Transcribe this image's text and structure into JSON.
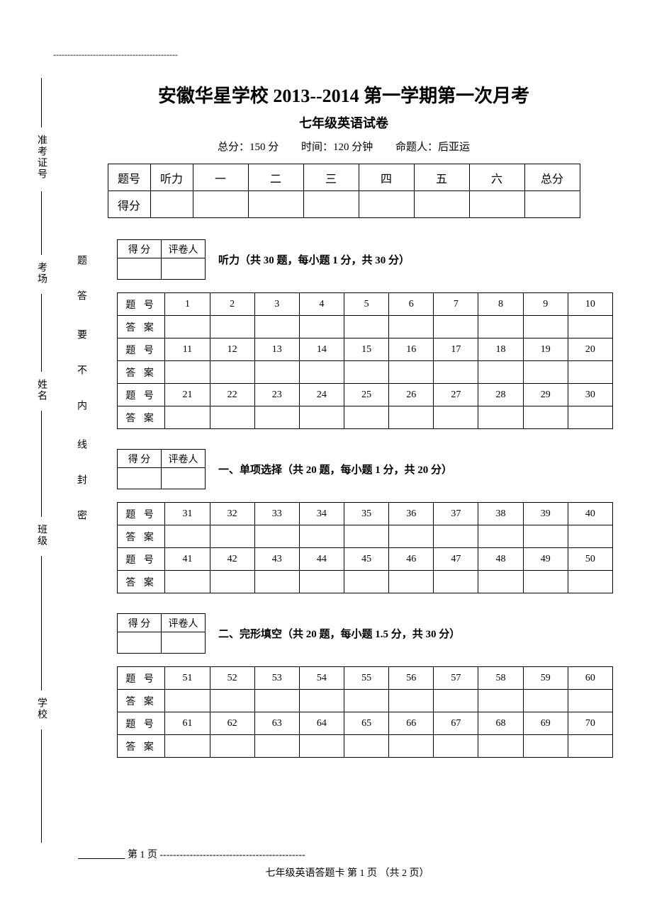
{
  "top_dash": "--------------------------------------------",
  "title": "安徽华星学校 2013--2014 第一学期第一次月考",
  "subtitle": "七年级英语试卷",
  "meta": {
    "total": "总分：150 分",
    "time": "时间：120 分钟",
    "author": "命题人：后亚运"
  },
  "main_score": {
    "row1": [
      "题号",
      "听力",
      "一",
      "二",
      "三",
      "四",
      "五",
      "六",
      "总分"
    ],
    "row2_label": "得分"
  },
  "score_reviewer": {
    "score": "得 分",
    "reviewer": "评卷人"
  },
  "sections": [
    {
      "title": "听力（共 30 题，每小题 1 分，共 30 分）",
      "row_label_q": "题 号",
      "row_label_a": "答 案",
      "rows": [
        [
          "1",
          "2",
          "3",
          "4",
          "5",
          "6",
          "7",
          "8",
          "9",
          "10"
        ],
        [
          "11",
          "12",
          "13",
          "14",
          "15",
          "16",
          "17",
          "18",
          "19",
          "20"
        ],
        [
          "21",
          "22",
          "23",
          "24",
          "25",
          "26",
          "27",
          "28",
          "29",
          "30"
        ]
      ]
    },
    {
      "title": "一、单项选择（共 20 题，每小题 1 分，共 20 分）",
      "row_label_q": "题 号",
      "row_label_a": "答 案",
      "rows": [
        [
          "31",
          "32",
          "33",
          "34",
          "35",
          "36",
          "37",
          "38",
          "39",
          "40"
        ],
        [
          "41",
          "42",
          "43",
          "44",
          "45",
          "46",
          "47",
          "48",
          "49",
          "50"
        ]
      ]
    },
    {
      "title": "二、完形填空（共 20 题，每小题 1.5 分，共 30 分）",
      "row_label_q": "题 号",
      "row_label_a": "答 案",
      "rows": [
        [
          "51",
          "52",
          "53",
          "54",
          "55",
          "56",
          "57",
          "58",
          "59",
          "60"
        ],
        [
          "61",
          "62",
          "63",
          "64",
          "65",
          "66",
          "67",
          "68",
          "69",
          "70"
        ]
      ]
    }
  ],
  "binding_labels": [
    "准考证号",
    "考场",
    "姓名",
    "班级",
    "学校"
  ],
  "binding_inner": [
    "题",
    "答",
    "要",
    "不",
    "内",
    "线",
    "封",
    "密"
  ],
  "footer": {
    "dash_prefix": "第 1 页",
    "dash": "--------------------------------------------",
    "center": "七年级英语答题卡  第 1 页    （共 2 页）"
  }
}
